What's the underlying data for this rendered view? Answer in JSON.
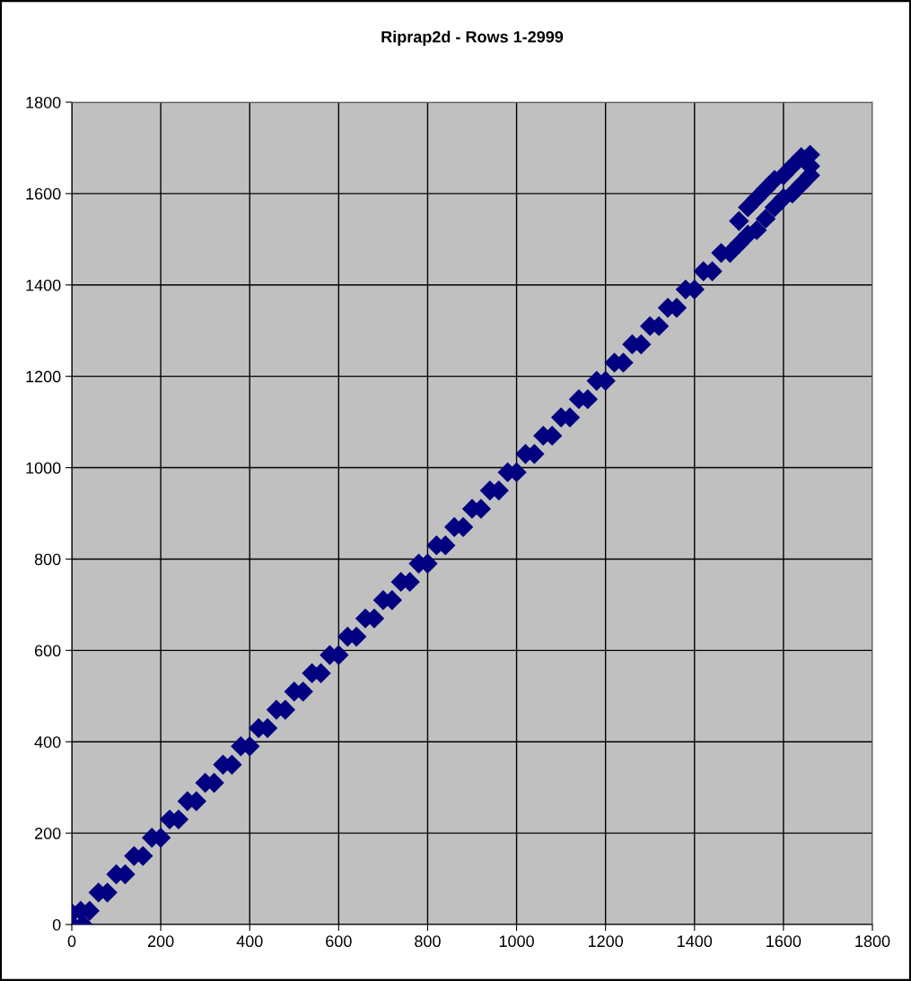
{
  "chart_data": {
    "type": "scatter",
    "title": "Riprap2d - Rows 1-2999",
    "series": [
      {
        "color": "#000080",
        "x": [
          0,
          0,
          25,
          20,
          40,
          60,
          80,
          100,
          120,
          140,
          160,
          180,
          200,
          220,
          240,
          260,
          280,
          300,
          320,
          340,
          360,
          380,
          400,
          420,
          440,
          460,
          480,
          500,
          520,
          540,
          560,
          580,
          600,
          620,
          640,
          660,
          680,
          700,
          720,
          740,
          760,
          780,
          800,
          820,
          840,
          860,
          880,
          900,
          920,
          940,
          960,
          980,
          1000,
          1020,
          1040,
          1060,
          1080,
          1100,
          1120,
          1140,
          1160,
          1180,
          1200,
          1220,
          1240,
          1260,
          1280,
          1300,
          1320,
          1340,
          1360,
          1380,
          1400,
          1420,
          1440,
          1460,
          1480,
          1500,
          1500,
          1520,
          1520,
          1540,
          1540,
          1560,
          1560,
          1580,
          1580,
          1600,
          1600,
          1620,
          1620,
          1640,
          1640,
          1660,
          1660,
          1660
        ],
        "values": [
          0,
          25,
          0,
          30,
          30,
          70,
          70,
          110,
          110,
          150,
          150,
          190,
          190,
          230,
          230,
          270,
          270,
          310,
          310,
          350,
          350,
          390,
          390,
          430,
          430,
          470,
          470,
          510,
          510,
          550,
          550,
          590,
          590,
          630,
          630,
          670,
          670,
          710,
          710,
          750,
          750,
          790,
          790,
          830,
          830,
          870,
          870,
          910,
          910,
          950,
          950,
          990,
          990,
          1030,
          1030,
          1070,
          1070,
          1110,
          1110,
          1150,
          1150,
          1190,
          1190,
          1230,
          1230,
          1270,
          1270,
          1310,
          1310,
          1350,
          1350,
          1390,
          1390,
          1430,
          1430,
          1470,
          1470,
          1540,
          1490,
          1570,
          1510,
          1590,
          1520,
          1610,
          1545,
          1630,
          1570,
          1640,
          1590,
          1660,
          1600,
          1680,
          1620,
          1685,
          1660,
          1640
        ]
      }
    ],
    "xlim": [
      0,
      1800
    ],
    "ylim": [
      0,
      1800
    ],
    "xticks": [
      0,
      200,
      400,
      600,
      800,
      1000,
      1200,
      1400,
      1600,
      1800
    ],
    "yticks": [
      0,
      200,
      400,
      600,
      800,
      1000,
      1200,
      1400,
      1600,
      1800
    ],
    "grid": true,
    "marker": "diamond"
  }
}
